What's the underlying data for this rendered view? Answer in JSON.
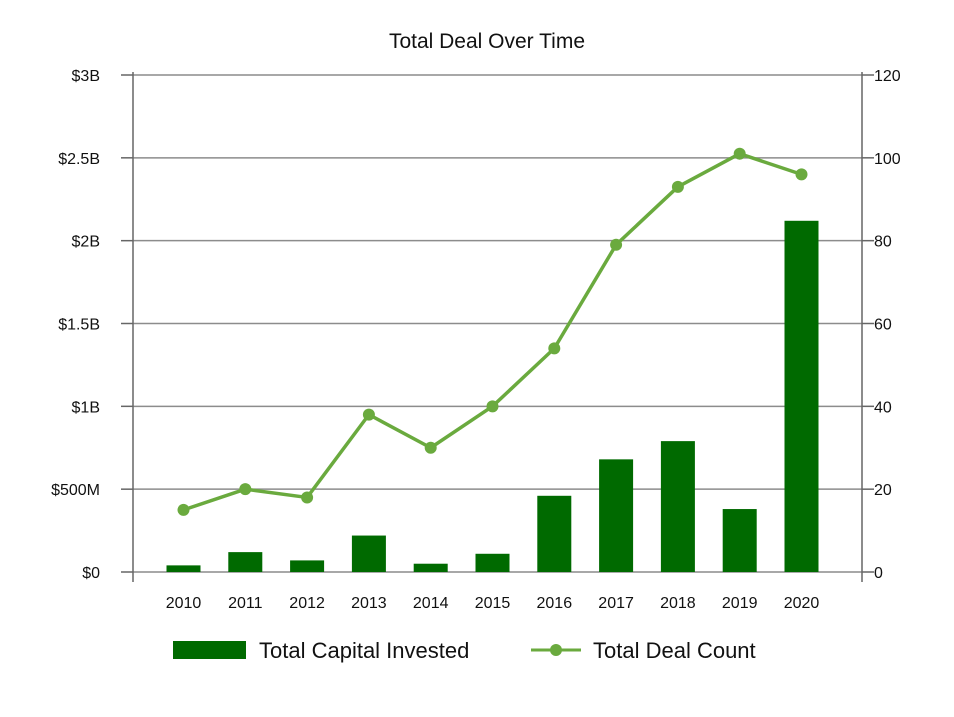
{
  "chart_data": {
    "type": "bar",
    "title": "Total Deal Over Time",
    "categories": [
      "2010",
      "2011",
      "2012",
      "2013",
      "2014",
      "2015",
      "2016",
      "2017",
      "2018",
      "2019",
      "2020"
    ],
    "series": [
      {
        "name": "Total Capital Invested",
        "type": "bar",
        "axis": "left",
        "values": [
          0.04,
          0.12,
          0.07,
          0.22,
          0.05,
          0.11,
          0.46,
          0.68,
          0.79,
          0.38,
          2.12
        ]
      },
      {
        "name": "Total Deal Count",
        "type": "line",
        "axis": "right",
        "values": [
          15,
          20,
          18,
          38,
          30,
          40,
          54,
          79,
          93,
          101,
          96
        ]
      }
    ],
    "y_left": {
      "lim": [
        0,
        3
      ],
      "ticks": [
        0,
        0.5,
        1,
        1.5,
        2,
        2.5,
        3
      ],
      "tick_labels": [
        "$0",
        "$500M",
        "$1B",
        "$1.5B",
        "$2B",
        "$2.5B",
        "$3B"
      ]
    },
    "y_right": {
      "lim": [
        0,
        120
      ],
      "ticks": [
        0,
        20,
        40,
        60,
        80,
        100,
        120
      ],
      "tick_labels": [
        "0",
        "20",
        "40",
        "60",
        "80",
        "100",
        "120"
      ]
    },
    "grid": true,
    "legend_position": "bottom",
    "colors": {
      "bar": "#006a00",
      "line": "#6aaa3e",
      "grid": "#8c8c8c",
      "axis": "#666666",
      "text": "#111111"
    }
  }
}
